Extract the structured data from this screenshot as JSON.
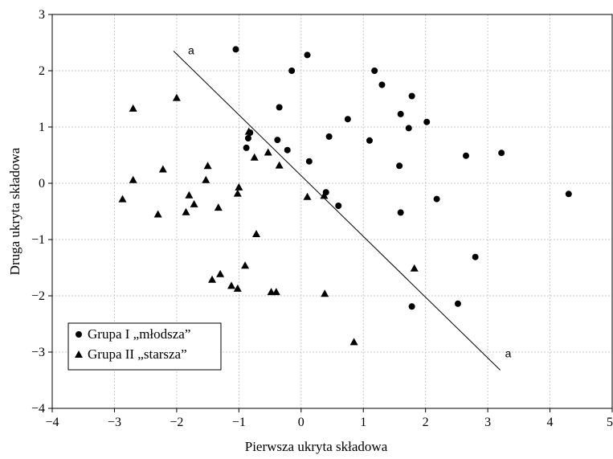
{
  "chart_data": {
    "type": "scatter",
    "title": "",
    "xlabel": "Pierwsza ukryta składowa",
    "ylabel": "Druga ukryta składowa",
    "xlim": [
      -4,
      5
    ],
    "ylim": [
      -4,
      3
    ],
    "xticks": [
      "−4",
      "−3",
      "−2",
      "−1",
      "0",
      "1",
      "2",
      "3",
      "4",
      "5"
    ],
    "yticks": [
      "3",
      "2",
      "1",
      "0",
      "−1",
      "−2",
      "−3",
      "−4"
    ],
    "grid": true,
    "legend_position": "bottom-left",
    "series": [
      {
        "name": "Grupa I „młodsza”",
        "marker": "circle",
        "points": [
          [
            -1.05,
            2.38
          ],
          [
            0.1,
            2.28
          ],
          [
            -0.15,
            2.0
          ],
          [
            1.18,
            2.0
          ],
          [
            1.3,
            1.75
          ],
          [
            1.78,
            1.55
          ],
          [
            -0.35,
            1.35
          ],
          [
            1.6,
            1.23
          ],
          [
            0.75,
            1.14
          ],
          [
            2.02,
            1.09
          ],
          [
            1.73,
            0.98
          ],
          [
            -0.82,
            0.9
          ],
          [
            -0.85,
            0.8
          ],
          [
            -0.38,
            0.77
          ],
          [
            0.45,
            0.83
          ],
          [
            1.1,
            0.76
          ],
          [
            -0.88,
            0.63
          ],
          [
            -0.22,
            0.59
          ],
          [
            2.65,
            0.49
          ],
          [
            3.22,
            0.54
          ],
          [
            0.13,
            0.39
          ],
          [
            1.58,
            0.31
          ],
          [
            0.4,
            -0.16
          ],
          [
            2.18,
            -0.28
          ],
          [
            0.6,
            -0.4
          ],
          [
            1.6,
            -0.52
          ],
          [
            4.3,
            -0.19
          ],
          [
            2.8,
            -1.31
          ],
          [
            2.52,
            -2.14
          ],
          [
            1.78,
            -2.19
          ]
        ]
      },
      {
        "name": "Grupa II „starsza”",
        "marker": "triangle",
        "points": [
          [
            -2.7,
            1.33
          ],
          [
            -2.0,
            1.52
          ],
          [
            -0.84,
            0.92
          ],
          [
            -0.75,
            0.46
          ],
          [
            -0.53,
            0.55
          ],
          [
            -0.35,
            0.32
          ],
          [
            -2.7,
            0.06
          ],
          [
            -2.22,
            0.25
          ],
          [
            -1.5,
            0.31
          ],
          [
            -1.53,
            0.06
          ],
          [
            -1.0,
            -0.07
          ],
          [
            -1.02,
            -0.18
          ],
          [
            -1.8,
            -0.21
          ],
          [
            -1.72,
            -0.37
          ],
          [
            -1.85,
            -0.51
          ],
          [
            -1.33,
            -0.43
          ],
          [
            -2.3,
            -0.55
          ],
          [
            -2.87,
            -0.28
          ],
          [
            0.1,
            -0.24
          ],
          [
            0.37,
            -0.22
          ],
          [
            -0.72,
            -0.9
          ],
          [
            -0.9,
            -1.46
          ],
          [
            -1.3,
            -1.61
          ],
          [
            -1.43,
            -1.71
          ],
          [
            -1.12,
            -1.82
          ],
          [
            -1.02,
            -1.87
          ],
          [
            -0.48,
            -1.93
          ],
          [
            -0.4,
            -1.93
          ],
          [
            0.38,
            -1.96
          ],
          [
            1.82,
            -1.51
          ],
          [
            0.85,
            -2.82
          ]
        ]
      }
    ],
    "annotation_line": {
      "label_start": "a",
      "label_end": "a",
      "start": [
        -2.05,
        2.35
      ],
      "end": [
        3.2,
        -3.32
      ]
    }
  }
}
